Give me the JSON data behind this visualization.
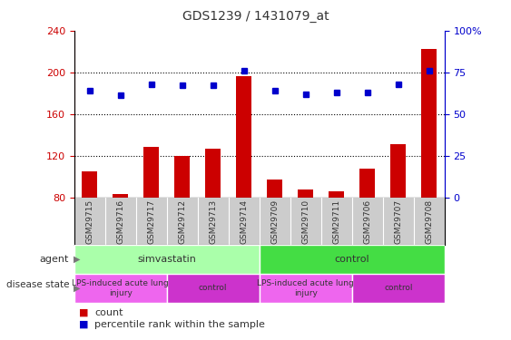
{
  "title": "GDS1239 / 1431079_at",
  "samples": [
    "GSM29715",
    "GSM29716",
    "GSM29717",
    "GSM29712",
    "GSM29713",
    "GSM29714",
    "GSM29709",
    "GSM29710",
    "GSM29711",
    "GSM29706",
    "GSM29707",
    "GSM29708"
  ],
  "count_values": [
    105,
    83,
    128,
    120,
    127,
    196,
    97,
    87,
    86,
    107,
    131,
    222
  ],
  "percentile_values": [
    64,
    61,
    68,
    67,
    67,
    76,
    64,
    62,
    63,
    63,
    68,
    76
  ],
  "ylim_left": [
    80,
    240
  ],
  "ylim_right": [
    0,
    100
  ],
  "yticks_left": [
    80,
    120,
    160,
    200,
    240
  ],
  "yticks_right": [
    0,
    25,
    50,
    75,
    100
  ],
  "bar_color": "#cc0000",
  "dot_color": "#0000cc",
  "agent_groups": [
    {
      "label": "simvastatin",
      "start": 0,
      "end": 6,
      "color": "#aaffaa"
    },
    {
      "label": "control",
      "start": 6,
      "end": 12,
      "color": "#44dd44"
    }
  ],
  "disease_groups": [
    {
      "label": "LPS-induced acute lung\ninjury",
      "start": 0,
      "end": 3,
      "color": "#ee66ee"
    },
    {
      "label": "control",
      "start": 3,
      "end": 6,
      "color": "#cc33cc"
    },
    {
      "label": "LPS-induced acute lung\ninjury",
      "start": 6,
      "end": 9,
      "color": "#ee66ee"
    },
    {
      "label": "control",
      "start": 9,
      "end": 12,
      "color": "#cc33cc"
    }
  ],
  "left_axis_color": "#cc0000",
  "right_axis_color": "#0000cc",
  "tick_label_color": "#333333",
  "label_color": "#555555"
}
